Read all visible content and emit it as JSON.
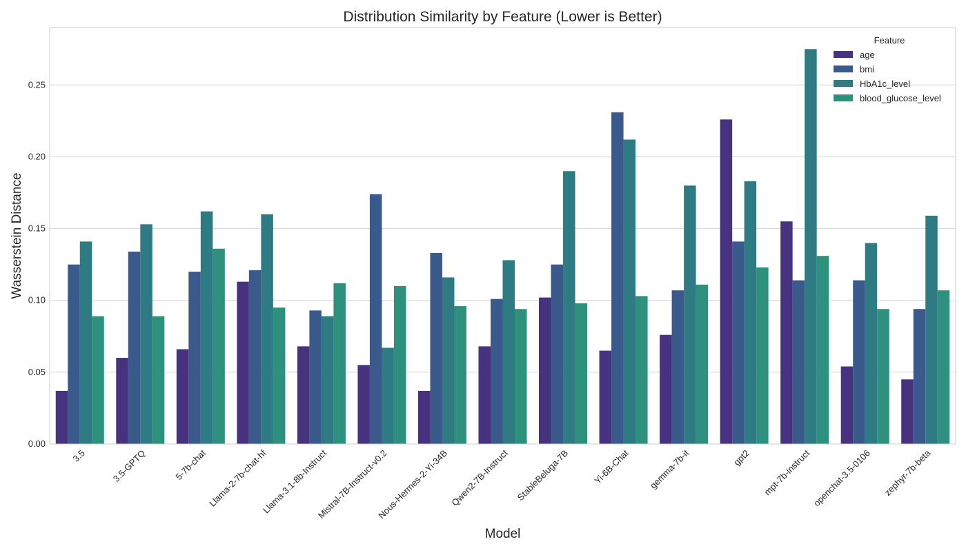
{
  "chart_data": {
    "type": "bar",
    "title": "Distribution Similarity by Feature (Lower is Better)",
    "xlabel": "Model",
    "ylabel": "Wasserstein Distance",
    "ylim": [
      0,
      0.29
    ],
    "yticks": [
      "0.00",
      "0.05",
      "0.10",
      "0.15",
      "0.20",
      "0.25"
    ],
    "grid": true,
    "legend": {
      "title": "Feature",
      "placement": "top-right"
    },
    "categories": [
      "3.5",
      "3.5-GPTQ",
      "5-7b-chat",
      "Llama-2-7b-chat-hf",
      "Llama-3.1-8b-Instruct",
      "Mistral-7B-Instruct-v0.2",
      "Nous-Hermes-2-Yi-34B",
      "Qwen2-7B-Instruct",
      "StableBeluga-7B",
      "Yi-6B-Chat",
      "gemma-7b-it",
      "gpt2",
      "mpt-7b-instruct",
      "openchat-3.5-0106",
      "zephyr-7b-beta"
    ],
    "series": [
      {
        "name": "age",
        "color": "#46327e",
        "values": [
          0.037,
          0.06,
          0.066,
          0.113,
          0.068,
          0.055,
          0.037,
          0.068,
          0.102,
          0.065,
          0.076,
          0.226,
          0.155,
          0.054,
          0.045
        ]
      },
      {
        "name": "bmi",
        "color": "#3b5a8c",
        "values": [
          0.125,
          0.134,
          0.12,
          0.121,
          0.093,
          0.174,
          0.133,
          0.101,
          0.125,
          0.231,
          0.107,
          0.141,
          0.114,
          0.114,
          0.094
        ]
      },
      {
        "name": "HbA1c_level",
        "color": "#2f7b84",
        "values": [
          0.141,
          0.153,
          0.162,
          0.16,
          0.089,
          0.067,
          0.116,
          0.128,
          0.19,
          0.212,
          0.18,
          0.183,
          0.275,
          0.14,
          0.159
        ]
      },
      {
        "name": "blood_glucose_level",
        "color": "#2e917e",
        "values": [
          0.089,
          0.089,
          0.136,
          0.095,
          0.112,
          0.11,
          0.096,
          0.094,
          0.098,
          0.103,
          0.111,
          0.123,
          0.131,
          0.094,
          0.107
        ]
      }
    ]
  }
}
